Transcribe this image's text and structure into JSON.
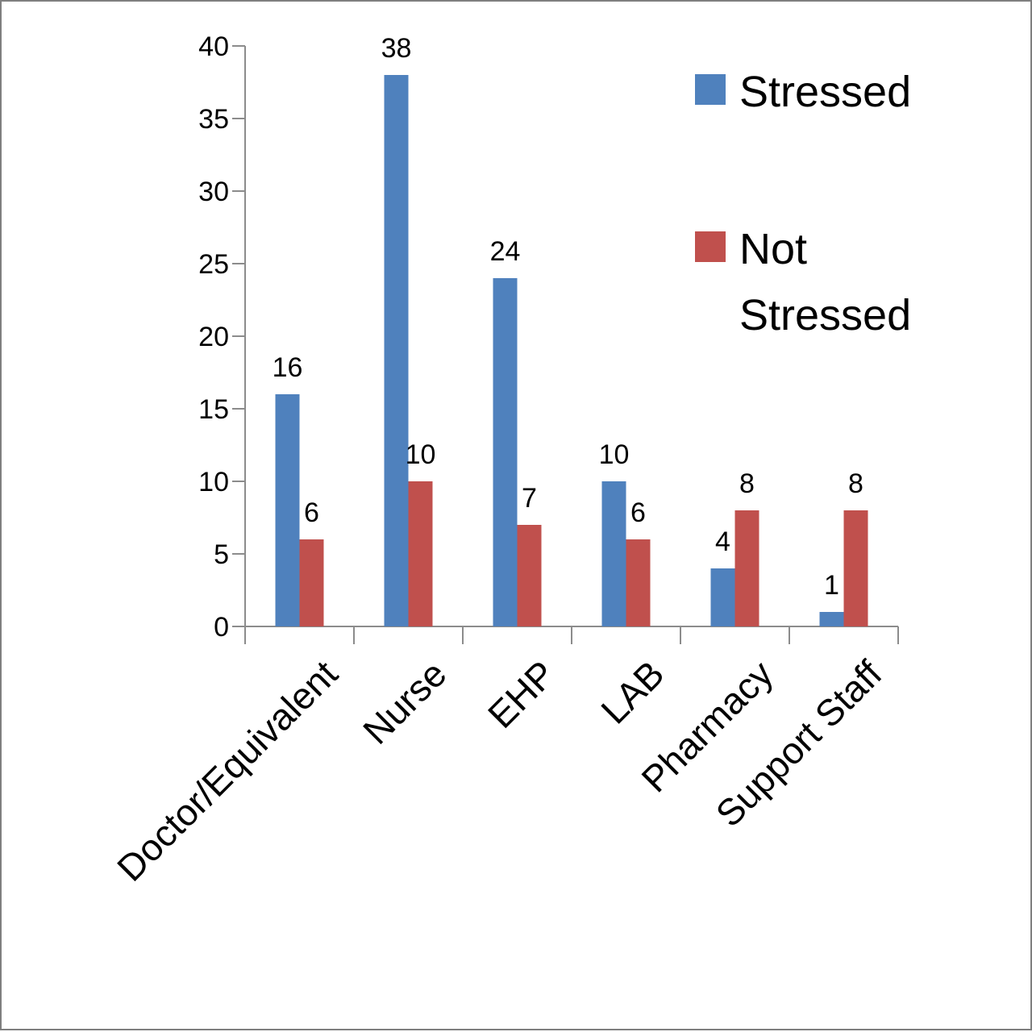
{
  "chart_data": {
    "type": "bar",
    "categories": [
      "Doctor/Equivalent",
      "Nurse",
      "EHP",
      "LAB",
      "Pharmacy",
      "Support Staff"
    ],
    "series": [
      {
        "name": "Stressed",
        "values": [
          16,
          38,
          24,
          10,
          4,
          1
        ],
        "color": "#4f81bd"
      },
      {
        "name": "Not Stressed",
        "values": [
          6,
          10,
          7,
          6,
          8,
          8
        ],
        "color": "#c0504d"
      }
    ],
    "ylim": [
      0,
      40
    ],
    "yticks": [
      0,
      5,
      10,
      15,
      20,
      25,
      30,
      35,
      40
    ],
    "grid": false,
    "legend": {
      "placement": "right",
      "entries": [
        {
          "lines": [
            "Stressed"
          ]
        },
        {
          "lines": [
            "Not",
            "Stressed"
          ]
        }
      ]
    },
    "data_labels": true
  }
}
